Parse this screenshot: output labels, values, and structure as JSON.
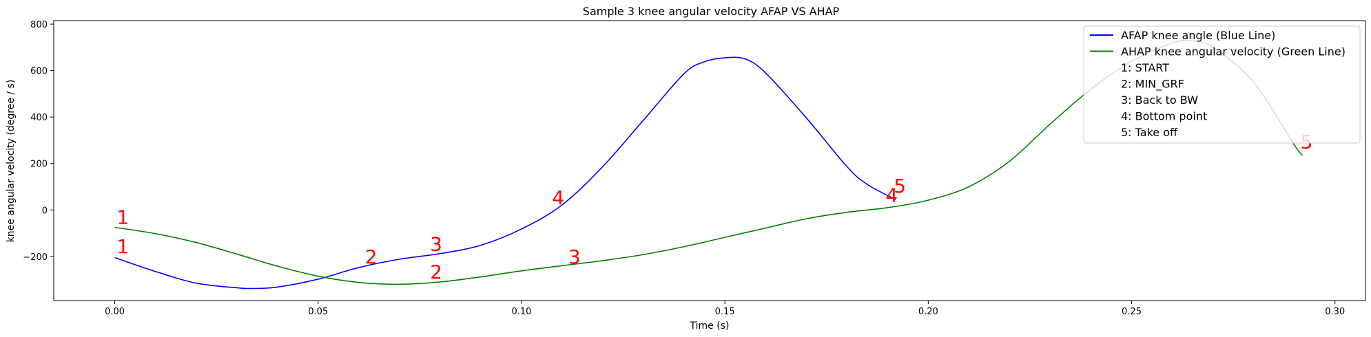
{
  "chart_data": {
    "type": "line",
    "title": "Sample 3 knee angular velocity AFAP VS AHAP",
    "xlabel": "Time (s)",
    "ylabel": "knee angular velocity (degree / s)",
    "xlim": [
      -0.015,
      0.3075
    ],
    "ylim": [
      -390,
      815
    ],
    "xticks": [
      0.0,
      0.05,
      0.1,
      0.15,
      0.2,
      0.25,
      0.3
    ],
    "xtick_labels": [
      "0.00",
      "0.05",
      "0.10",
      "0.15",
      "0.20",
      "0.25",
      "0.30"
    ],
    "yticks": [
      -200,
      0,
      200,
      400,
      600,
      800
    ],
    "ytick_labels": [
      "−200",
      "0",
      "200",
      "400",
      "600",
      "800"
    ],
    "grid": false,
    "legend_position": "top-right",
    "legend": [
      "AFAP knee angle (Blue Line)",
      "AHAP knee angular velocity (Green Line)",
      "1: START",
      "2: MIN_GRF",
      "3: Back to BW",
      "4: Bottom point",
      "5: Take off"
    ],
    "series": [
      {
        "name": "AFAP knee angle (Blue Line)",
        "color": "#0000ff",
        "x": [
          0.0,
          0.01,
          0.02,
          0.03,
          0.034,
          0.04,
          0.05,
          0.06,
          0.07,
          0.08,
          0.09,
          0.1,
          0.11,
          0.12,
          0.13,
          0.14,
          0.145,
          0.15,
          0.155,
          0.16,
          0.17,
          0.18,
          0.185,
          0.192
        ],
        "y": [
          -205,
          -265,
          -315,
          -335,
          -338,
          -332,
          -298,
          -248,
          -212,
          -188,
          -152,
          -82,
          22,
          187,
          387,
          587,
          638,
          655,
          650,
          590,
          397,
          187,
          110,
          45
        ]
      },
      {
        "name": "AHAP knee angular velocity (Green Line)",
        "color": "#008000",
        "x": [
          0.0,
          0.01,
          0.02,
          0.03,
          0.04,
          0.05,
          0.06,
          0.07,
          0.08,
          0.09,
          0.1,
          0.11,
          0.12,
          0.13,
          0.14,
          0.15,
          0.16,
          0.17,
          0.18,
          0.19,
          0.2,
          0.21,
          0.22,
          0.23,
          0.24,
          0.25,
          0.26,
          0.265,
          0.27,
          0.28,
          0.29,
          0.292
        ],
        "y": [
          -75,
          -102,
          -140,
          -190,
          -242,
          -285,
          -312,
          -320,
          -310,
          -288,
          -262,
          -240,
          -218,
          -192,
          -158,
          -118,
          -78,
          -38,
          -10,
          10,
          42,
          100,
          210,
          370,
          520,
          640,
          718,
          728,
          700,
          550,
          280,
          235
        ]
      }
    ],
    "annotations": [
      {
        "text": "1",
        "x": 0.0,
        "y": -200,
        "color": "#ff0000"
      },
      {
        "text": "1",
        "x": 0.0,
        "y": -75,
        "color": "#ff0000"
      },
      {
        "text": "2",
        "x": 0.061,
        "y": -245,
        "color": "#ff0000"
      },
      {
        "text": "2",
        "x": 0.077,
        "y": -310,
        "color": "#ff0000"
      },
      {
        "text": "3",
        "x": 0.077,
        "y": -190,
        "color": "#ff0000"
      },
      {
        "text": "3",
        "x": 0.111,
        "y": -245,
        "color": "#ff0000"
      },
      {
        "text": "4",
        "x": 0.107,
        "y": 10,
        "color": "#ff0000"
      },
      {
        "text": "4",
        "x": 0.189,
        "y": 20,
        "color": "#ff0000"
      },
      {
        "text": "5",
        "x": 0.191,
        "y": 60,
        "color": "#ff0000"
      },
      {
        "text": "5",
        "x": 0.291,
        "y": 250,
        "color": "#ff0000"
      }
    ]
  }
}
